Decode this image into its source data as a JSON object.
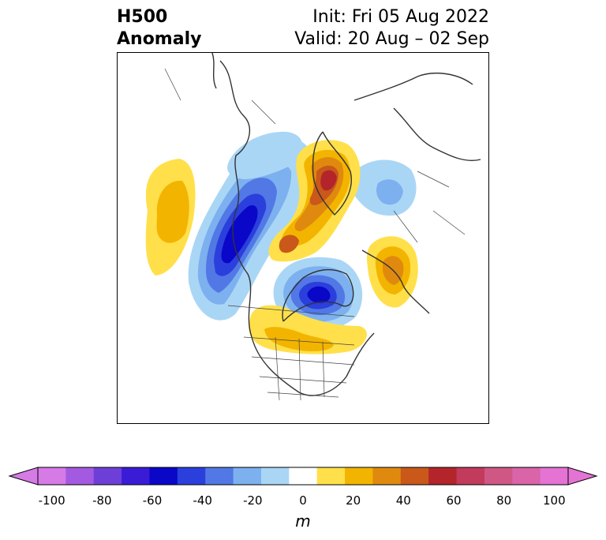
{
  "header": {
    "title_line1": "H500",
    "title_line2": "Anomaly",
    "init_text": "Init: Fri 05 Aug 2022",
    "valid_text": "Valid: 20 Aug – 02 Sep"
  },
  "colorbar": {
    "unit": "m",
    "ticks": [
      "-100",
      "-80",
      "-60",
      "-40",
      "-20",
      "0",
      "20",
      "40",
      "60",
      "80",
      "100"
    ],
    "min": -100,
    "max": 100,
    "step": 10,
    "colors": [
      "#d67ae6",
      "#a35ae0",
      "#6d3fd8",
      "#3a1cd6",
      "#0a07c8",
      "#2b3fdc",
      "#5178e4",
      "#7db0ef",
      "#aad6f6",
      "#ffffff",
      "#ffe04a",
      "#f3b400",
      "#df8a0f",
      "#c9581a",
      "#b3252a",
      "#c23a5c",
      "#cf5784",
      "#d964a8",
      "#e473d4"
    ],
    "extend": "both"
  },
  "map": {
    "projection": "polar stereographic",
    "region": "North America / North Pacific / Arctic"
  }
}
